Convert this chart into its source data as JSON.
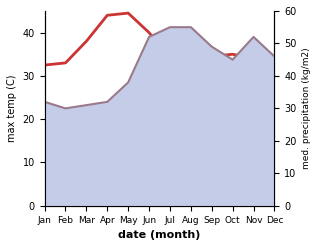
{
  "months": [
    "Jan",
    "Feb",
    "Mar",
    "Apr",
    "May",
    "Jun",
    "Jul",
    "Aug",
    "Sep",
    "Oct",
    "Nov",
    "Dec"
  ],
  "x": [
    0,
    1,
    2,
    3,
    4,
    5,
    6,
    7,
    8,
    9,
    10,
    11
  ],
  "temp": [
    32.5,
    33,
    38,
    44,
    44.5,
    40,
    34,
    33.5,
    34.5,
    35,
    34,
    31.5
  ],
  "precip": [
    32,
    30,
    31,
    32,
    38,
    52,
    55,
    55,
    49,
    45,
    52,
    46
  ],
  "temp_color": "#cc3333",
  "precip_line_color": "#9a7a8a",
  "precip_fill_color": "#c5cce8",
  "xlabel": "date (month)",
  "ylabel_left": "max temp (C)",
  "ylabel_right": "med. precipitation (kg/m2)",
  "ylim_left": [
    0,
    45
  ],
  "ylim_right": [
    0,
    60
  ],
  "yticks_left": [
    0,
    10,
    20,
    30,
    40
  ],
  "yticks_right": [
    0,
    10,
    20,
    30,
    40,
    50,
    60
  ],
  "background_color": "#ffffff"
}
